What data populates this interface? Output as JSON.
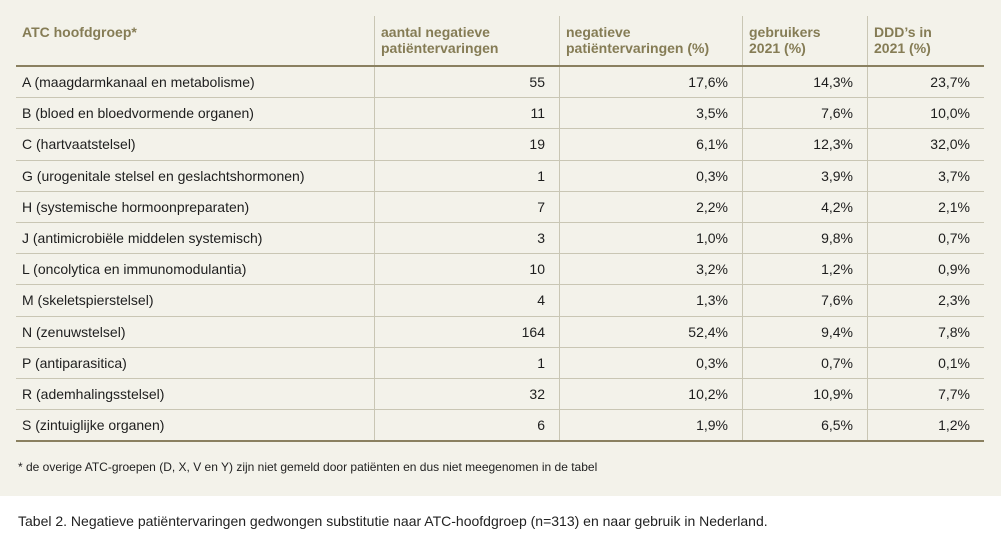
{
  "table": {
    "headers": [
      [
        "ATC hoofdgroep*",
        ""
      ],
      [
        "aantal negatieve",
        "patiëntervaringen"
      ],
      [
        "negatieve",
        "patiëntervaringen (%)"
      ],
      [
        "gebruikers",
        "2021 (%)"
      ],
      [
        "DDD’s in",
        "2021 (%)"
      ]
    ],
    "rows": [
      [
        "A (maagdarmkanaal en metabolisme)",
        "55",
        "17,6%",
        "14,3%",
        "23,7%"
      ],
      [
        "B (bloed en bloedvormende organen)",
        "11",
        "3,5%",
        "7,6%",
        "10,0%"
      ],
      [
        "C (hartvaatstelsel)",
        "19",
        "6,1%",
        "12,3%",
        "32,0%"
      ],
      [
        "G (urogenitale stelsel en geslachtshormonen)",
        "1",
        "0,3%",
        "3,9%",
        "3,7%"
      ],
      [
        "H (systemische hormoonpreparaten)",
        "7",
        "2,2%",
        "4,2%",
        "2,1%"
      ],
      [
        "J (antimicrobiële middelen systemisch)",
        "3",
        "1,0%",
        "9,8%",
        "0,7%"
      ],
      [
        "L (oncolytica en immunomodulantia)",
        "10",
        "3,2%",
        "1,2%",
        "0,9%"
      ],
      [
        "M (skeletspierstelsel)",
        "4",
        "1,3%",
        "7,6%",
        "2,3%"
      ],
      [
        "N (zenuwstelsel)",
        "164",
        "52,4%",
        "9,4%",
        "7,8%"
      ],
      [
        "P (antiparasitica)",
        "1",
        "0,3%",
        "0,7%",
        "0,1%"
      ],
      [
        "R (ademhalingsstelsel)",
        "32",
        "10,2%",
        "10,9%",
        "7,7%"
      ],
      [
        "S (zintuiglijke organen)",
        "6",
        "1,9%",
        "6,5%",
        "1,2%"
      ]
    ]
  },
  "footnote": "* de overige ATC-groepen (D, X, V en Y) zijn niet gemeld door patiënten en dus niet meegenomen in de tabel",
  "caption": "Tabel 2. Negatieve patiëntervaringen gedwongen substitutie naar ATC-hoofdgroep (n=313) en naar gebruik in Nederland.",
  "colors": {
    "header_text": "#857c55",
    "panel_bg": "#f3f2ea",
    "rule": "#8a8060"
  }
}
